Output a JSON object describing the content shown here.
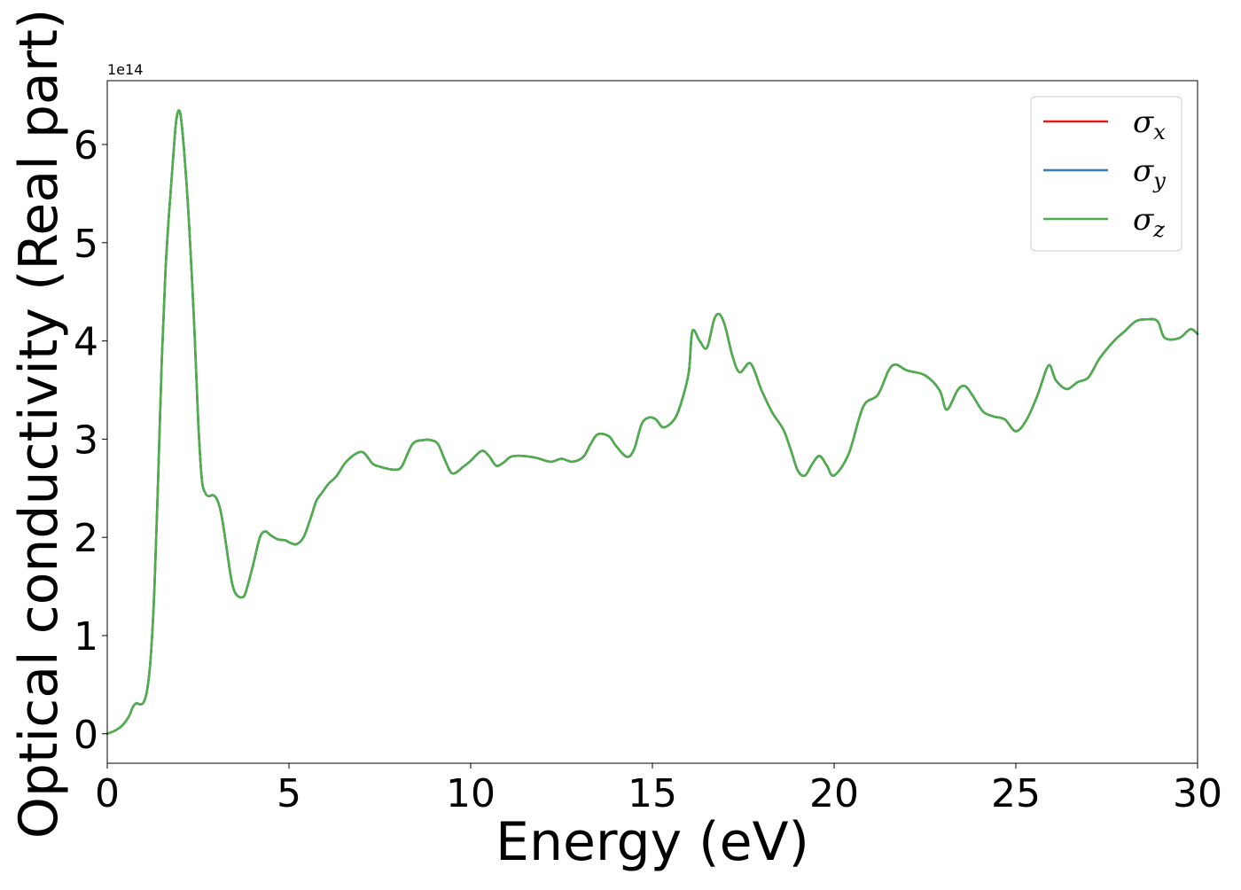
{
  "chart_data": {
    "type": "line",
    "xlabel": "Energy (eV)",
    "ylabel": "Optical conductivity (Real part)",
    "y_offset_label": "1e14",
    "xlim": [
      0,
      30
    ],
    "ylim": [
      -0.3,
      6.65
    ],
    "xticks": [
      0,
      5,
      10,
      15,
      20,
      25,
      30
    ],
    "xtick_labels": [
      "0",
      "5",
      "10",
      "15",
      "20",
      "25",
      "30"
    ],
    "yticks": [
      0,
      1,
      2,
      3,
      4,
      5,
      6
    ],
    "ytick_labels": [
      "0",
      "1",
      "2",
      "3",
      "4",
      "5",
      "6"
    ],
    "grid": false,
    "legend_position": "top-right",
    "series": [
      {
        "name": "σx",
        "symbol": "σ",
        "subscript": "x",
        "color": "#e41a1c",
        "x": [
          0,
          0.2,
          0.4,
          0.6,
          0.7,
          0.8,
          0.9,
          1.0,
          1.1,
          1.2,
          1.3,
          1.4,
          1.5,
          1.6,
          1.7,
          1.8,
          1.9,
          2.0,
          2.1,
          2.25,
          2.4,
          2.5,
          2.6,
          2.7,
          2.8,
          2.9,
          3.0,
          3.1,
          3.2,
          3.4,
          3.5,
          3.6,
          3.7,
          3.8,
          4.0,
          4.2,
          4.35,
          4.5,
          4.7,
          4.9,
          5.0,
          5.2,
          5.4,
          5.6,
          5.75,
          5.9,
          6.1,
          6.3,
          6.6,
          7.0,
          7.3,
          7.5,
          7.7,
          7.9,
          8.1,
          8.4,
          8.7,
          8.9,
          9.1,
          9.3,
          9.5,
          9.8,
          10.0,
          10.3,
          10.5,
          10.7,
          10.9,
          11.1,
          11.4,
          11.8,
          12.2,
          12.5,
          12.8,
          13.1,
          13.3,
          13.5,
          13.8,
          14.0,
          14.3,
          14.5,
          14.7,
          14.9,
          15.1,
          15.3,
          15.6,
          15.8,
          16.0,
          16.1,
          16.3,
          16.5,
          16.7,
          16.85,
          17.0,
          17.2,
          17.4,
          17.7,
          18.0,
          18.3,
          18.6,
          18.8,
          19.0,
          19.2,
          19.4,
          19.6,
          19.8,
          20.0,
          20.4,
          20.8,
          21.2,
          21.5,
          21.7,
          22.0,
          22.5,
          22.9,
          23.1,
          23.4,
          23.6,
          23.8,
          24.1,
          24.4,
          24.7,
          25.0,
          25.3,
          25.6,
          25.9,
          26.1,
          26.4,
          26.7,
          27.0,
          27.3,
          27.7,
          28.0,
          28.3,
          28.6,
          28.9,
          29.1,
          29.5,
          29.8,
          30.0
        ],
        "y": [
          0.0,
          0.03,
          0.08,
          0.18,
          0.27,
          0.31,
          0.3,
          0.32,
          0.45,
          0.8,
          1.5,
          2.6,
          3.8,
          4.7,
          5.3,
          5.8,
          6.25,
          6.33,
          6.0,
          5.2,
          4.1,
          3.2,
          2.6,
          2.45,
          2.42,
          2.43,
          2.4,
          2.3,
          2.1,
          1.6,
          1.45,
          1.4,
          1.39,
          1.43,
          1.7,
          2.0,
          2.06,
          2.02,
          1.98,
          1.97,
          1.95,
          1.93,
          2.0,
          2.2,
          2.37,
          2.45,
          2.55,
          2.62,
          2.78,
          2.87,
          2.75,
          2.72,
          2.7,
          2.69,
          2.72,
          2.95,
          2.99,
          2.99,
          2.95,
          2.78,
          2.65,
          2.72,
          2.78,
          2.88,
          2.83,
          2.73,
          2.76,
          2.82,
          2.83,
          2.81,
          2.77,
          2.8,
          2.77,
          2.82,
          2.95,
          3.05,
          3.03,
          2.93,
          2.82,
          2.9,
          3.15,
          3.22,
          3.2,
          3.12,
          3.2,
          3.38,
          3.68,
          4.1,
          4.0,
          3.93,
          4.22,
          4.27,
          4.15,
          3.85,
          3.68,
          3.77,
          3.5,
          3.27,
          3.1,
          2.9,
          2.68,
          2.63,
          2.75,
          2.83,
          2.73,
          2.63,
          2.85,
          3.33,
          3.45,
          3.7,
          3.76,
          3.7,
          3.65,
          3.5,
          3.3,
          3.5,
          3.54,
          3.45,
          3.28,
          3.23,
          3.2,
          3.08,
          3.2,
          3.45,
          3.75,
          3.6,
          3.51,
          3.58,
          3.63,
          3.82,
          4.0,
          4.1,
          4.2,
          4.22,
          4.2,
          4.03,
          4.03,
          4.12,
          4.07
        ]
      },
      {
        "name": "σy",
        "symbol": "σ",
        "subscript": "y",
        "color": "#377eb8",
        "x": [
          0,
          0.2,
          0.4,
          0.6,
          0.7,
          0.8,
          0.9,
          1.0,
          1.1,
          1.2,
          1.3,
          1.4,
          1.5,
          1.6,
          1.7,
          1.8,
          1.9,
          2.0,
          2.1,
          2.25,
          2.4,
          2.5,
          2.6,
          2.7,
          2.8,
          2.9,
          3.0,
          3.1,
          3.2,
          3.4,
          3.5,
          3.6,
          3.7,
          3.8,
          4.0,
          4.2,
          4.35,
          4.5,
          4.7,
          4.9,
          5.0,
          5.2,
          5.4,
          5.6,
          5.75,
          5.9,
          6.1,
          6.3,
          6.6,
          7.0,
          7.3,
          7.5,
          7.7,
          7.9,
          8.1,
          8.4,
          8.7,
          8.9,
          9.1,
          9.3,
          9.5,
          9.8,
          10.0,
          10.3,
          10.5,
          10.7,
          10.9,
          11.1,
          11.4,
          11.8,
          12.2,
          12.5,
          12.8,
          13.1,
          13.3,
          13.5,
          13.8,
          14.0,
          14.3,
          14.5,
          14.7,
          14.9,
          15.1,
          15.3,
          15.6,
          15.8,
          16.0,
          16.1,
          16.3,
          16.5,
          16.7,
          16.85,
          17.0,
          17.2,
          17.4,
          17.7,
          18.0,
          18.3,
          18.6,
          18.8,
          19.0,
          19.2,
          19.4,
          19.6,
          19.8,
          20.0,
          20.4,
          20.8,
          21.2,
          21.5,
          21.7,
          22.0,
          22.5,
          22.9,
          23.1,
          23.4,
          23.6,
          23.8,
          24.1,
          24.4,
          24.7,
          25.0,
          25.3,
          25.6,
          25.9,
          26.1,
          26.4,
          26.7,
          27.0,
          27.3,
          27.7,
          28.0,
          28.3,
          28.6,
          28.9,
          29.1,
          29.5,
          29.8,
          30.0
        ],
        "y": [
          0.0,
          0.03,
          0.08,
          0.18,
          0.27,
          0.31,
          0.3,
          0.32,
          0.45,
          0.8,
          1.5,
          2.6,
          3.8,
          4.7,
          5.3,
          5.8,
          6.25,
          6.33,
          6.0,
          5.2,
          4.1,
          3.2,
          2.6,
          2.45,
          2.42,
          2.43,
          2.4,
          2.3,
          2.1,
          1.6,
          1.45,
          1.4,
          1.39,
          1.43,
          1.7,
          2.0,
          2.06,
          2.02,
          1.98,
          1.97,
          1.95,
          1.93,
          2.0,
          2.2,
          2.37,
          2.45,
          2.55,
          2.62,
          2.78,
          2.87,
          2.75,
          2.72,
          2.7,
          2.69,
          2.72,
          2.95,
          2.99,
          2.99,
          2.95,
          2.78,
          2.65,
          2.72,
          2.78,
          2.88,
          2.83,
          2.73,
          2.76,
          2.82,
          2.83,
          2.81,
          2.77,
          2.8,
          2.77,
          2.82,
          2.95,
          3.05,
          3.03,
          2.93,
          2.82,
          2.9,
          3.15,
          3.22,
          3.2,
          3.12,
          3.2,
          3.38,
          3.68,
          4.1,
          4.0,
          3.93,
          4.22,
          4.27,
          4.15,
          3.85,
          3.68,
          3.77,
          3.5,
          3.27,
          3.1,
          2.9,
          2.68,
          2.63,
          2.75,
          2.83,
          2.73,
          2.63,
          2.85,
          3.33,
          3.45,
          3.7,
          3.76,
          3.7,
          3.65,
          3.5,
          3.3,
          3.5,
          3.54,
          3.45,
          3.28,
          3.23,
          3.2,
          3.08,
          3.2,
          3.45,
          3.75,
          3.6,
          3.51,
          3.58,
          3.63,
          3.82,
          4.0,
          4.1,
          4.2,
          4.22,
          4.2,
          4.03,
          4.03,
          4.12,
          4.07
        ]
      },
      {
        "name": "σz",
        "symbol": "σ",
        "subscript": "z",
        "color": "#4daf4a",
        "x": [
          0,
          0.2,
          0.4,
          0.6,
          0.7,
          0.8,
          0.9,
          1.0,
          1.1,
          1.2,
          1.3,
          1.4,
          1.5,
          1.6,
          1.7,
          1.8,
          1.9,
          2.0,
          2.1,
          2.25,
          2.4,
          2.5,
          2.6,
          2.7,
          2.8,
          2.9,
          3.0,
          3.1,
          3.2,
          3.4,
          3.5,
          3.6,
          3.7,
          3.8,
          4.0,
          4.2,
          4.35,
          4.5,
          4.7,
          4.9,
          5.0,
          5.2,
          5.4,
          5.6,
          5.75,
          5.9,
          6.1,
          6.3,
          6.6,
          7.0,
          7.3,
          7.5,
          7.7,
          7.9,
          8.1,
          8.4,
          8.7,
          8.9,
          9.1,
          9.3,
          9.5,
          9.8,
          10.0,
          10.3,
          10.5,
          10.7,
          10.9,
          11.1,
          11.4,
          11.8,
          12.2,
          12.5,
          12.8,
          13.1,
          13.3,
          13.5,
          13.8,
          14.0,
          14.3,
          14.5,
          14.7,
          14.9,
          15.1,
          15.3,
          15.6,
          15.8,
          16.0,
          16.1,
          16.3,
          16.5,
          16.7,
          16.85,
          17.0,
          17.2,
          17.4,
          17.7,
          18.0,
          18.3,
          18.6,
          18.8,
          19.0,
          19.2,
          19.4,
          19.6,
          19.8,
          20.0,
          20.4,
          20.8,
          21.2,
          21.5,
          21.7,
          22.0,
          22.5,
          22.9,
          23.1,
          23.4,
          23.6,
          23.8,
          24.1,
          24.4,
          24.7,
          25.0,
          25.3,
          25.6,
          25.9,
          26.1,
          26.4,
          26.7,
          27.0,
          27.3,
          27.7,
          28.0,
          28.3,
          28.6,
          28.9,
          29.1,
          29.5,
          29.8,
          30.0
        ],
        "y": [
          0.0,
          0.03,
          0.08,
          0.18,
          0.27,
          0.31,
          0.3,
          0.32,
          0.45,
          0.8,
          1.5,
          2.6,
          3.8,
          4.7,
          5.3,
          5.8,
          6.25,
          6.33,
          6.0,
          5.2,
          4.1,
          3.2,
          2.6,
          2.45,
          2.42,
          2.43,
          2.4,
          2.3,
          2.1,
          1.6,
          1.45,
          1.4,
          1.39,
          1.43,
          1.7,
          2.0,
          2.06,
          2.02,
          1.98,
          1.97,
          1.95,
          1.93,
          2.0,
          2.2,
          2.37,
          2.45,
          2.55,
          2.62,
          2.78,
          2.87,
          2.75,
          2.72,
          2.7,
          2.69,
          2.72,
          2.95,
          2.99,
          2.99,
          2.95,
          2.78,
          2.65,
          2.72,
          2.78,
          2.88,
          2.83,
          2.73,
          2.76,
          2.82,
          2.83,
          2.81,
          2.77,
          2.8,
          2.77,
          2.82,
          2.95,
          3.05,
          3.03,
          2.93,
          2.82,
          2.9,
          3.15,
          3.22,
          3.2,
          3.12,
          3.2,
          3.38,
          3.68,
          4.1,
          4.0,
          3.93,
          4.22,
          4.27,
          4.15,
          3.85,
          3.68,
          3.77,
          3.5,
          3.27,
          3.1,
          2.9,
          2.68,
          2.63,
          2.75,
          2.83,
          2.73,
          2.63,
          2.85,
          3.33,
          3.45,
          3.7,
          3.76,
          3.7,
          3.65,
          3.5,
          3.3,
          3.5,
          3.54,
          3.45,
          3.28,
          3.23,
          3.2,
          3.08,
          3.2,
          3.45,
          3.75,
          3.6,
          3.51,
          3.58,
          3.63,
          3.82,
          4.0,
          4.1,
          4.2,
          4.22,
          4.2,
          4.03,
          4.03,
          4.12,
          4.07
        ]
      }
    ]
  }
}
